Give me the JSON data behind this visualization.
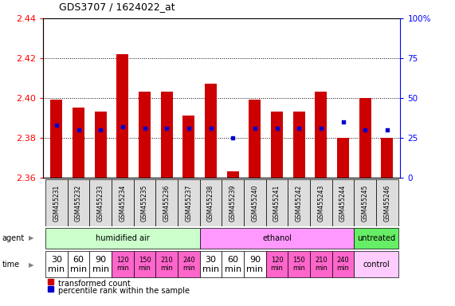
{
  "title": "GDS3707 / 1624022_at",
  "samples": [
    "GSM455231",
    "GSM455232",
    "GSM455233",
    "GSM455234",
    "GSM455235",
    "GSM455236",
    "GSM455237",
    "GSM455238",
    "GSM455239",
    "GSM455240",
    "GSM455241",
    "GSM455242",
    "GSM455243",
    "GSM455244",
    "GSM455245",
    "GSM455246"
  ],
  "bar_values": [
    2.399,
    2.395,
    2.393,
    2.422,
    2.403,
    2.403,
    2.391,
    2.407,
    2.363,
    2.399,
    2.393,
    2.393,
    2.403,
    2.38,
    2.4,
    2.38
  ],
  "blue_dot_values": [
    33,
    30,
    30,
    32,
    31,
    31,
    31,
    31,
    25,
    31,
    31,
    31,
    31,
    35,
    30,
    30
  ],
  "ymin": 2.36,
  "ymax": 2.44,
  "yticks": [
    2.36,
    2.38,
    2.4,
    2.42,
    2.44
  ],
  "right_yticks": [
    0,
    25,
    50,
    75,
    100
  ],
  "bar_color": "#cc0000",
  "dot_color": "#0000cc",
  "agent_humidified_color": "#ccffcc",
  "agent_ethanol_color": "#ff99ff",
  "agent_untreated_color": "#66ee66",
  "time_white_color": "#ffffff",
  "time_pink_color": "#ff66cc",
  "time_control_color": "#ffccff",
  "sample_box_color": "#dddddd",
  "bg_color": "#ffffff"
}
